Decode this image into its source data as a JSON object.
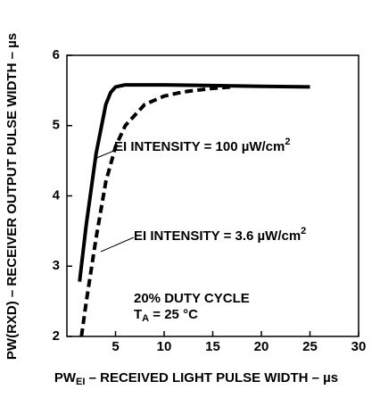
{
  "chart_data": {
    "type": "line",
    "xlabel": {
      "main": "PW",
      "sub": "EI",
      "rest": " – RECEIVED LIGHT PULSE WIDTH – µs"
    },
    "ylabel": "PW(RXD) – RECEIVER OUTPUT PULSE WIDTH – µs",
    "xlim": [
      0,
      30
    ],
    "xticks": [
      5,
      10,
      15,
      20,
      25,
      30
    ],
    "ylim": [
      2,
      6
    ],
    "yticks": [
      2,
      3,
      4,
      5,
      6
    ],
    "series": [
      {
        "color": "#000000",
        "dash": false,
        "x": [
          1.3,
          2,
          3,
          4,
          4.5,
          5,
          6,
          8,
          10,
          15,
          20,
          25
        ],
        "values": [
          2.78,
          3.6,
          4.6,
          5.3,
          5.47,
          5.55,
          5.58,
          5.58,
          5.58,
          5.57,
          5.56,
          5.55
        ]
      },
      {
        "color": "#000000",
        "dash": true,
        "x": [
          1.5,
          2,
          3,
          4,
          5,
          6,
          8,
          10,
          12,
          15,
          17
        ],
        "values": [
          2.0,
          2.5,
          3.4,
          4.2,
          4.7,
          5.0,
          5.3,
          5.42,
          5.48,
          5.53,
          5.55
        ]
      }
    ],
    "annotations": [
      {
        "text": "EI INTENSITY = 100 µW/cm",
        "sup": "2"
      },
      {
        "text": "EI INTENSITY = 3.6 µW/cm",
        "sup": "2"
      },
      {
        "text": "20% DUTY CYCLE"
      },
      {
        "main": "T",
        "sub": "A",
        "rest": " = 25 °C"
      }
    ]
  }
}
